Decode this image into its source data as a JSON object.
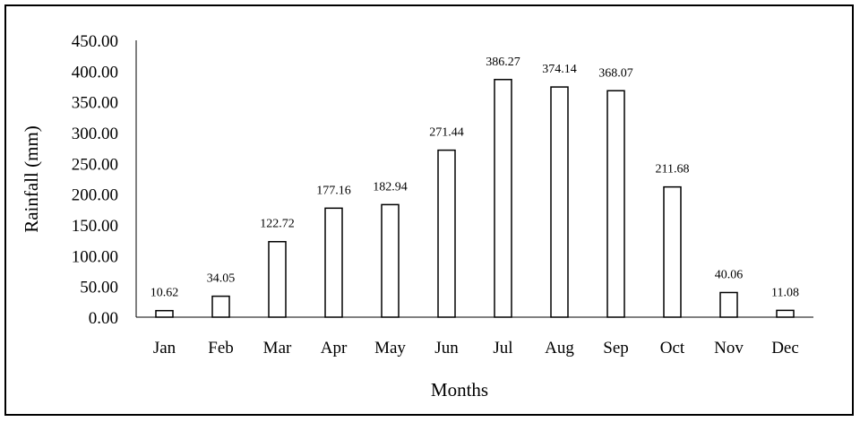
{
  "chart_data": {
    "type": "bar",
    "title": "",
    "xlabel": "Months",
    "ylabel": "Rainfall (mm)",
    "categories": [
      "Jan",
      "Feb",
      "Mar",
      "Apr",
      "May",
      "Jun",
      "Jul",
      "Aug",
      "Sep",
      "Oct",
      "Nov",
      "Dec"
    ],
    "values": [
      10.62,
      34.05,
      122.72,
      177.16,
      182.94,
      271.44,
      386.27,
      374.14,
      368.07,
      211.68,
      40.06,
      11.08
    ],
    "data_labels": [
      "10.62",
      "34.05",
      "122.72",
      "177.16",
      "182.94",
      "271.44",
      "386.27",
      "374.14",
      "368.07",
      "211.68",
      "40.06",
      "11.08"
    ],
    "yticks": [
      "0.00",
      "50.00",
      "100.00",
      "150.00",
      "200.00",
      "250.00",
      "300.00",
      "350.00",
      "400.00",
      "450.00"
    ],
    "ylim": [
      0,
      450
    ],
    "grid": false,
    "legend": "none",
    "bar_fill": "#ffffff",
    "bar_stroke": "#000000"
  }
}
